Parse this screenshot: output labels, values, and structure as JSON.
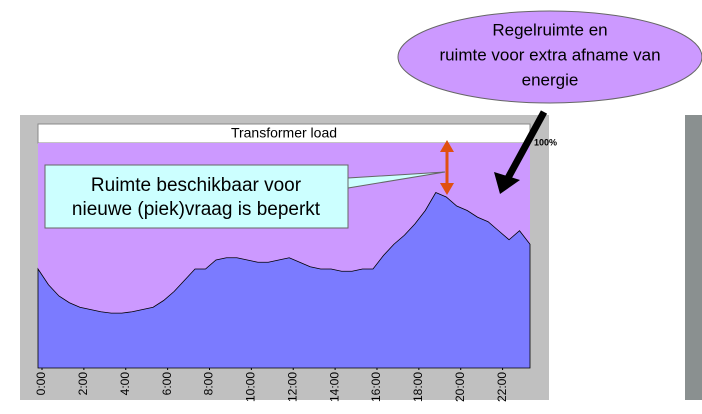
{
  "chart_data": {
    "type": "area",
    "title": "Transformer load",
    "x": [
      0,
      0.5,
      1,
      1.5,
      2,
      2.5,
      3,
      3.5,
      4,
      4.5,
      5,
      5.5,
      6,
      6.5,
      7,
      7.5,
      8,
      8.5,
      9,
      9.5,
      10,
      10.5,
      11,
      11.5,
      12,
      12.5,
      13,
      13.5,
      14,
      14.5,
      15,
      15.5,
      16,
      16.5,
      17,
      17.5,
      18,
      18.5,
      19,
      19.5,
      20,
      20.5,
      21,
      21.5,
      22,
      22.5,
      23,
      23.5
    ],
    "series": [
      {
        "name": "Transformer load",
        "color": "#7b7bff",
        "values": [
          44,
          37,
          32,
          29,
          27,
          26,
          25,
          24.4,
          24.4,
          25,
          26,
          27,
          30,
          34,
          39,
          44,
          44,
          48,
          49,
          49,
          48,
          47,
          47,
          48,
          49,
          47,
          45,
          44,
          44,
          43,
          43,
          44,
          44,
          50,
          55,
          59,
          64,
          70,
          78,
          76,
          72,
          70,
          67,
          65,
          61,
          57,
          61,
          55
        ]
      }
    ],
    "xlim": [
      0,
      23.5
    ],
    "xticks": [
      {
        "value": 0,
        "label": "0:00"
      },
      {
        "value": 2,
        "label": "2:00"
      },
      {
        "value": 4,
        "label": "4:00"
      },
      {
        "value": 6,
        "label": "6:00"
      },
      {
        "value": 8,
        "label": "8:00"
      },
      {
        "value": 10,
        "label": "10:00"
      },
      {
        "value": 12,
        "label": "12:00"
      },
      {
        "value": 14,
        "label": "14:00"
      },
      {
        "value": 16,
        "label": "16:00"
      },
      {
        "value": 18,
        "label": "18:00"
      },
      {
        "value": 20,
        "label": "20:00"
      },
      {
        "value": 22,
        "label": "22:00"
      }
    ],
    "ylim": [
      0,
      100
    ],
    "yticks": [
      {
        "value": 100,
        "label": "100%"
      }
    ],
    "capacity_color": "#cc99ff",
    "annotations": [
      {
        "text": [
          "Ruimte beschikbaar voor",
          "nieuwe (piek)vraag is beperkt"
        ]
      },
      {
        "text": [
          "Regelruimte en",
          "ruimte voor extra afname van",
          "energie"
        ]
      }
    ]
  }
}
